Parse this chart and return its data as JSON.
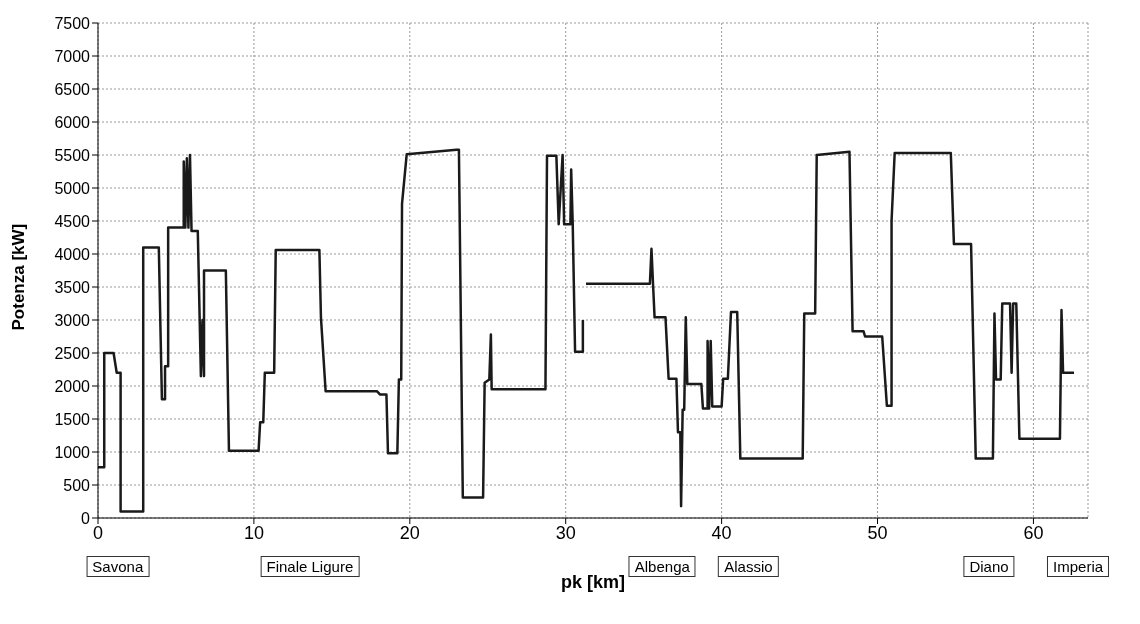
{
  "chart_data": {
    "type": "line",
    "xlabel": "pk [km]",
    "ylabel": "Potenza [kW]",
    "xlim": [
      0,
      63.5
    ],
    "xticks": [
      0,
      10,
      20,
      30,
      40,
      50,
      60
    ],
    "ylim": [
      0,
      7500
    ],
    "yticks": [
      0,
      500,
      1000,
      1500,
      2000,
      2500,
      3000,
      3500,
      4000,
      4500,
      5000,
      5500,
      6000,
      6500,
      7000,
      7500
    ],
    "grid": true,
    "marker": "none",
    "line_style": "solid",
    "annotations": [
      "Savona",
      "Finale Ligure",
      "Albenga",
      "Alassio",
      "Diano",
      "Imperia"
    ],
    "series": [
      {
        "color": "#1a1a1a",
        "x": [
          0,
          0.4,
          0.4,
          1.0,
          1.2,
          1.45,
          1.45,
          2.9,
          2.9,
          3.9,
          4.1,
          4.3,
          4.3,
          4.5,
          4.5,
          5.5,
          5.5,
          5.6,
          5.7,
          5.8,
          5.9,
          6.0,
          6.4,
          6.6,
          6.7,
          6.8,
          6.8,
          8.2,
          8.4,
          10.3,
          10.4,
          10.6,
          10.7,
          11.3,
          11.4,
          14.2,
          14.3,
          14.6,
          17.9,
          18.1,
          18.5,
          18.6,
          19.2,
          19.3,
          19.45,
          19.5,
          19.8,
          23.0,
          23.15,
          23.4,
          24.7,
          24.8,
          25.1,
          25.2,
          25.25,
          28.7,
          28.8,
          29.4,
          29.55,
          29.8,
          29.9,
          30.3,
          30.35,
          30.45,
          30.6,
          31.1,
          31.1,
          31.2,
          31.3,
          35.4,
          35.5,
          35.6,
          35.7,
          36.4,
          36.6,
          37.1,
          37.2,
          37.35,
          37.4,
          37.5,
          37.6,
          37.7,
          37.8,
          38.7,
          38.8,
          39.1,
          39.1,
          39.2,
          39.3,
          39.4,
          40.0,
          40.1,
          40.4,
          40.6,
          41.0,
          41.2,
          45.2,
          45.3,
          46.0,
          46.1,
          48.2,
          48.4,
          49.1,
          49.2,
          50.3,
          50.6,
          50.9,
          50.9,
          51.1,
          54.7,
          54.9,
          56.0,
          56.3,
          57.4,
          57.5,
          57.6,
          57.9,
          58.0,
          58.5,
          58.6,
          58.7,
          58.9,
          59.1,
          61.7,
          61.8,
          61.9,
          62.6
        ],
        "values": [
          770,
          770,
          2500,
          2500,
          2200,
          2200,
          100,
          100,
          4100,
          4100,
          1800,
          1800,
          2300,
          2300,
          4400,
          4400,
          5400,
          4400,
          5450,
          4400,
          5500,
          4350,
          4350,
          2150,
          3000,
          2150,
          3750,
          3750,
          1020,
          1020,
          1450,
          1450,
          2200,
          2200,
          4060,
          4060,
          3040,
          1920,
          1920,
          1870,
          1870,
          980,
          980,
          2100,
          2100,
          4760,
          5510,
          5580,
          5580,
          310,
          310,
          2050,
          2100,
          2780,
          1950,
          1950,
          5490,
          5490,
          4450,
          5500,
          4450,
          4450,
          5280,
          4450,
          2520,
          2520,
          3000,
          null,
          3550,
          3550,
          4080,
          3550,
          3040,
          3040,
          2110,
          2110,
          1300,
          1300,
          180,
          1640,
          1640,
          3040,
          2030,
          2030,
          1660,
          1660,
          2680,
          1660,
          2680,
          1690,
          1690,
          2110,
          2110,
          3120,
          3120,
          900,
          900,
          3100,
          3100,
          5500,
          5550,
          2830,
          2830,
          2750,
          2750,
          1700,
          1700,
          4500,
          5530,
          5530,
          4150,
          4150,
          900,
          900,
          3100,
          2100,
          2100,
          3250,
          3250,
          2200,
          3250,
          3250,
          1200,
          1200,
          3150,
          2200,
          2200
        ]
      }
    ]
  }
}
